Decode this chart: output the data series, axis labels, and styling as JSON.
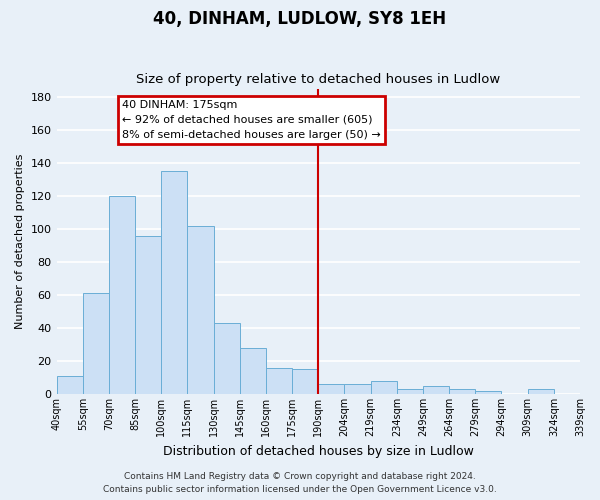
{
  "title": "40, DINHAM, LUDLOW, SY8 1EH",
  "subtitle": "Size of property relative to detached houses in Ludlow",
  "xlabel": "Distribution of detached houses by size in Ludlow",
  "ylabel": "Number of detached properties",
  "bar_labels": [
    "40sqm",
    "55sqm",
    "70sqm",
    "85sqm",
    "100sqm",
    "115sqm",
    "130sqm",
    "145sqm",
    "160sqm",
    "175sqm",
    "190sqm",
    "204sqm",
    "219sqm",
    "234sqm",
    "249sqm",
    "264sqm",
    "279sqm",
    "294sqm",
    "309sqm",
    "324sqm",
    "339sqm"
  ],
  "bar_heights": [
    11,
    61,
    120,
    96,
    135,
    102,
    43,
    28,
    16,
    15,
    6,
    6,
    8,
    3,
    5,
    3,
    2,
    0,
    3,
    0
  ],
  "bar_face_color": "#cce0f5",
  "bar_edge_color": "#6aaed6",
  "vline_position": 9,
  "vline_color": "#cc0000",
  "annotation_title": "40 DINHAM: 175sqm",
  "annotation_line1": "← 92% of detached houses are smaller (605)",
  "annotation_line2": "8% of semi-detached houses are larger (50) →",
  "annotation_box_edgecolor": "#cc0000",
  "annotation_bg": "white",
  "ylim": [
    0,
    185
  ],
  "yticks": [
    0,
    20,
    40,
    60,
    80,
    100,
    120,
    140,
    160,
    180
  ],
  "background_color": "#e8f0f8",
  "grid_color": "white",
  "footer_line1": "Contains HM Land Registry data © Crown copyright and database right 2024.",
  "footer_line2": "Contains public sector information licensed under the Open Government Licence v3.0.",
  "title_fontsize": 12,
  "subtitle_fontsize": 9.5,
  "xlabel_fontsize": 9,
  "ylabel_fontsize": 8,
  "tick_fontsize": 7,
  "footer_fontsize": 6.5,
  "annotation_fontsize": 8
}
